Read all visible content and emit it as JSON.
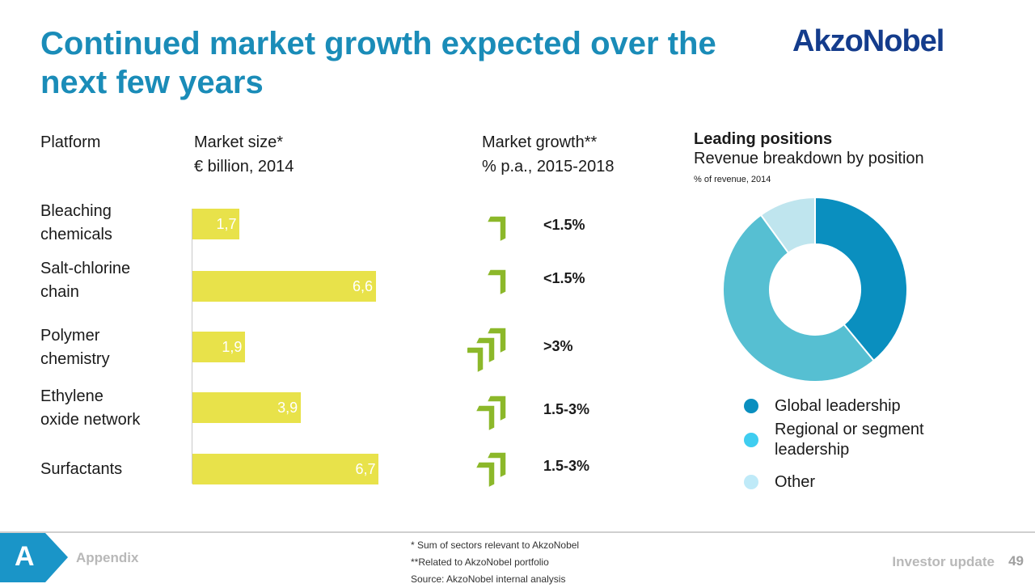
{
  "slide": {
    "title": "Continued market growth expected over the next few years",
    "logo": "AkzoNobel"
  },
  "headers": {
    "platform": "Platform",
    "market_size": "Market size*",
    "market_size_unit": "€ billion, 2014",
    "market_growth": "Market growth**",
    "market_growth_unit": "% p.a., 2015-2018",
    "leading_title": "Leading positions",
    "leading_subtitle": "Revenue breakdown by position",
    "leading_unit": "% of revenue, 2014"
  },
  "colors": {
    "title": "#1a8cb8",
    "bar": "#e8e24a",
    "arrow": "#8cb82a",
    "global": "#0a8fbf",
    "regional": "#56bfd2",
    "other": "#bfe5ee",
    "tab": "#1a95c8"
  },
  "chart_data": [
    {
      "type": "bar",
      "categories": [
        "Bleaching chemicals",
        "Salt-chlorine chain",
        "Polymer chemistry",
        "Ethylene oxide network",
        "Surfactants"
      ],
      "values": [
        1.7,
        6.6,
        1.9,
        3.9,
        6.7
      ],
      "value_labels": [
        "1,7",
        "6,6",
        "1,9",
        "3,9",
        "6,7"
      ],
      "title": "Market size*",
      "ylabel": "€ billion, 2014",
      "xlim": [
        0,
        7
      ],
      "orientation": "horizontal",
      "grid": false
    },
    {
      "type": "pie",
      "variant": "donut",
      "categories": [
        "Global leadership",
        "Regional or segment leadership",
        "Other"
      ],
      "values": [
        39,
        51,
        10
      ],
      "title": "Leading positions",
      "subtitle": "Revenue breakdown by position",
      "unit": "% of revenue, 2014",
      "legend": "bottom"
    }
  ],
  "rows": [
    {
      "label_lines": [
        "Bleaching",
        "chemicals"
      ],
      "growth": "<1.5%",
      "arrows": 1
    },
    {
      "label_lines": [
        "Salt-chlorine",
        "chain"
      ],
      "growth": "<1.5%",
      "arrows": 1
    },
    {
      "label_lines": [
        "Polymer",
        "chemistry"
      ],
      "growth": ">3%",
      "arrows": 3
    },
    {
      "label_lines": [
        "Ethylene",
        "oxide network"
      ],
      "growth": "1.5-3%",
      "arrows": 2
    },
    {
      "label_lines": [
        "Surfactants",
        ""
      ],
      "growth": "1.5-3%",
      "arrows": 2
    }
  ],
  "legend": [
    {
      "label": "Global leadership"
    },
    {
      "label": "Regional or segment\nleadership"
    },
    {
      "label": "Other"
    }
  ],
  "footer": {
    "section_letter": "A",
    "section_name": "Appendix",
    "notes": "* Sum of sectors relevant to AkzoNobel\n**Related to AkzoNobel portfolio\nSource:  AkzoNobel internal analysis",
    "doc_name": "Investor update",
    "page": "49"
  }
}
